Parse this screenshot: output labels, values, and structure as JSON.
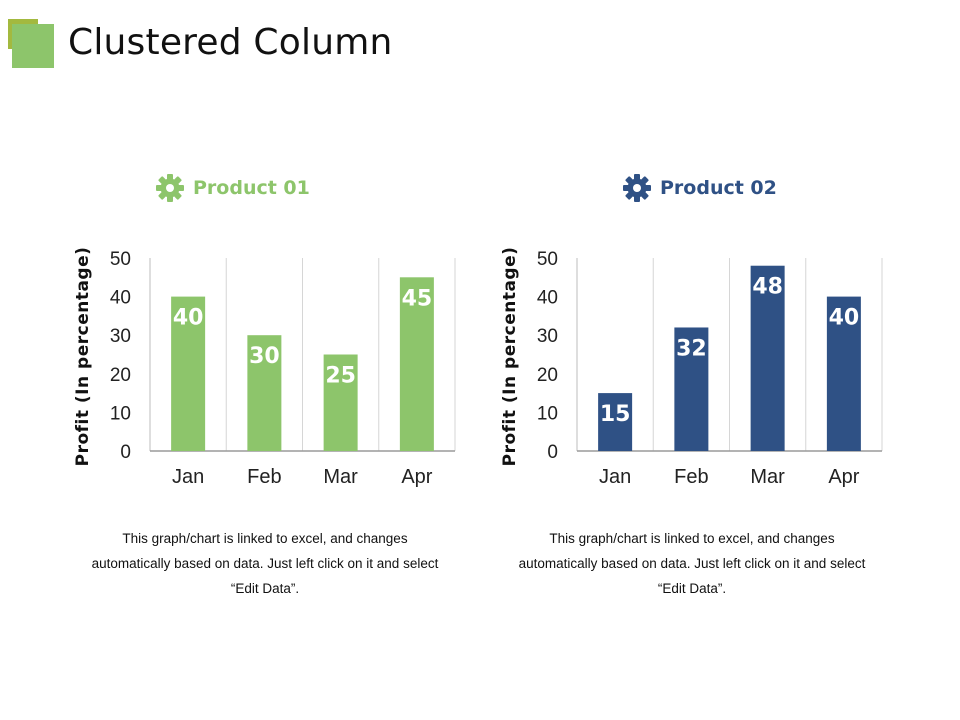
{
  "slide": {
    "title": "Clustered Column",
    "colors": {
      "logo_back": "#a3b93f",
      "logo_front": "#8dc56b"
    }
  },
  "charts": [
    {
      "heading": "Product 01",
      "heading_icon": "gear-icon",
      "note_line1": "This graph/chart is linked to excel, and changes",
      "note_line2": "automatically based on data. Just left click on it and select",
      "note_line3": "“Edit Data”.",
      "color": "#8dc56b"
    },
    {
      "heading": "Product 02",
      "heading_icon": "gear-icon",
      "note_line1": "This graph/chart is linked to excel, and changes",
      "note_line2": "automatically based on data. Just left click on it and select",
      "note_line3": "“Edit Data”.",
      "color": "#2f5185"
    }
  ],
  "chart_data": [
    {
      "type": "bar",
      "title": "Product 01",
      "categories": [
        "Jan",
        "Feb",
        "Mar",
        "Apr"
      ],
      "values": [
        40,
        30,
        25,
        45
      ],
      "ylabel": "Profit  (In percentage)",
      "xlabel": "",
      "ylim": [
        0,
        50
      ],
      "yticks": [
        0,
        10,
        20,
        30,
        40,
        50
      ],
      "grid": "vertical separators",
      "color": "#8dc56b"
    },
    {
      "type": "bar",
      "title": "Product 02",
      "categories": [
        "Jan",
        "Feb",
        "Mar",
        "Apr"
      ],
      "values": [
        15,
        32,
        48,
        40
      ],
      "ylabel": "Profit  (In percentage)",
      "xlabel": "",
      "ylim": [
        0,
        50
      ],
      "yticks": [
        0,
        10,
        20,
        30,
        40,
        50
      ],
      "grid": "vertical separators",
      "color": "#2f5185"
    }
  ]
}
